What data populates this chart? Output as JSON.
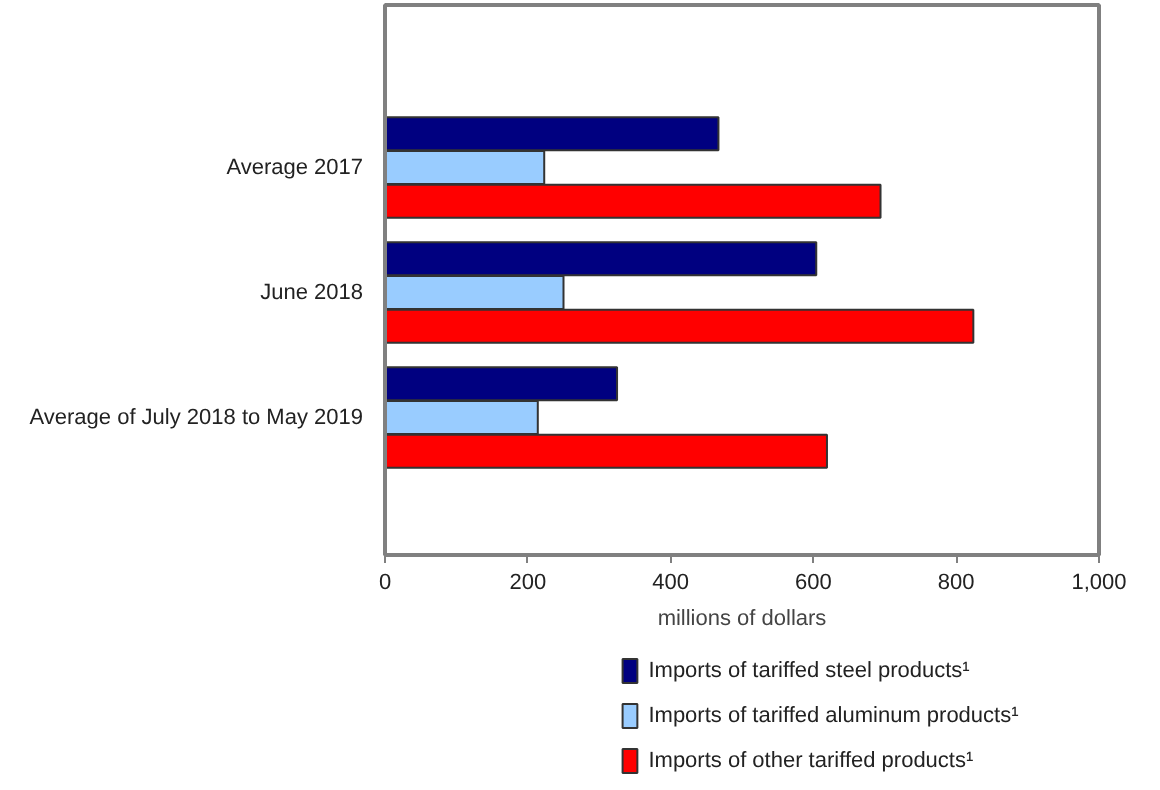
{
  "chart_data": {
    "type": "bar",
    "orientation": "horizontal",
    "categories": [
      "Average 2017",
      "June 2018",
      "Average of July 2018 to May 2019"
    ],
    "series": [
      {
        "name": "Imports of tariffed steel products¹",
        "color": "#000080",
        "values": [
          467,
          604,
          325
        ]
      },
      {
        "name": "Imports of tariffed aluminum products¹",
        "color": "#99ccff",
        "values": [
          223,
          250,
          214
        ]
      },
      {
        "name": "Imports of other tariffed products¹",
        "color": "#ff0000",
        "values": [
          694,
          824,
          619
        ]
      }
    ],
    "xlim": [
      0,
      1000
    ],
    "xticks": [
      0,
      200,
      400,
      600,
      800,
      {
        "value": 1000,
        "label": "1,000"
      }
    ],
    "xlabel": "millions of dollars",
    "legend": "bottom",
    "grid": false
  }
}
